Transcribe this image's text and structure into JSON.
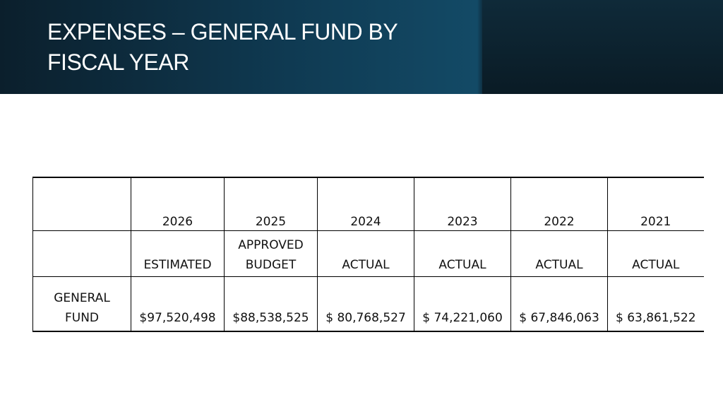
{
  "slide": {
    "title": "EXPENSES – GENERAL FUND BY\nFISCAL YEAR"
  },
  "table": {
    "years": [
      "2026",
      "2025",
      "2024",
      "2023",
      "2022",
      "2021"
    ],
    "types": [
      [
        "ESTIMATED"
      ],
      [
        "APPROVED",
        "BUDGET"
      ],
      [
        "ACTUAL"
      ],
      [
        "ACTUAL"
      ],
      [
        "ACTUAL"
      ],
      [
        "ACTUAL"
      ]
    ],
    "row_label": [
      "GENERAL",
      "FUND"
    ],
    "values": [
      "$97,520,498",
      "$88,538,525",
      "$ 80,768,527",
      "$ 74,221,060",
      "$ 67,846,063",
      "$ 63,861,522"
    ]
  },
  "colors": {
    "header_dark": "#0b1f2c",
    "header_mid": "#134a66"
  }
}
